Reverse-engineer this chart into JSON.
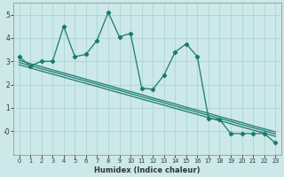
{
  "xlabel": "Humidex (Indice chaleur)",
  "x_values": [
    0,
    1,
    2,
    3,
    4,
    5,
    6,
    7,
    8,
    9,
    10,
    11,
    12,
    13,
    14,
    15,
    16,
    17,
    18,
    19,
    20,
    21,
    22,
    23
  ],
  "main_line": [
    3.2,
    2.8,
    3.0,
    3.0,
    4.5,
    3.2,
    3.3,
    3.9,
    5.1,
    4.05,
    4.2,
    1.85,
    1.8,
    2.4,
    3.4,
    3.75,
    3.2,
    0.55,
    0.5,
    -0.1,
    -0.1,
    -0.1,
    -0.1,
    -0.5
  ],
  "trend_line1": [
    3.05,
    2.9,
    2.77,
    2.63,
    2.5,
    2.37,
    2.23,
    2.1,
    1.97,
    1.83,
    1.7,
    1.57,
    1.43,
    1.3,
    1.17,
    1.03,
    0.9,
    0.77,
    0.63,
    0.5,
    0.37,
    0.23,
    0.1,
    -0.03
  ],
  "trend_line2": [
    2.95,
    2.82,
    2.68,
    2.55,
    2.42,
    2.28,
    2.15,
    2.02,
    1.88,
    1.75,
    1.62,
    1.48,
    1.35,
    1.22,
    1.08,
    0.95,
    0.82,
    0.68,
    0.55,
    0.42,
    0.28,
    0.15,
    0.02,
    -0.12
  ],
  "trend_line3": [
    2.85,
    2.72,
    2.58,
    2.45,
    2.32,
    2.18,
    2.05,
    1.92,
    1.78,
    1.65,
    1.52,
    1.38,
    1.25,
    1.12,
    0.98,
    0.85,
    0.72,
    0.58,
    0.45,
    0.32,
    0.18,
    0.05,
    -0.08,
    -0.22
  ],
  "line_color": "#1a7a6e",
  "bg_color": "#cce8e8",
  "grid_color": "#aad4d4",
  "ylim": [
    -1.0,
    5.5
  ],
  "xlim": [
    -0.5,
    23.5
  ],
  "ytick_labels": [
    "-0",
    "1",
    "2",
    "3",
    "4",
    "5"
  ],
  "ytick_vals": [
    0,
    1,
    2,
    3,
    4,
    5
  ]
}
